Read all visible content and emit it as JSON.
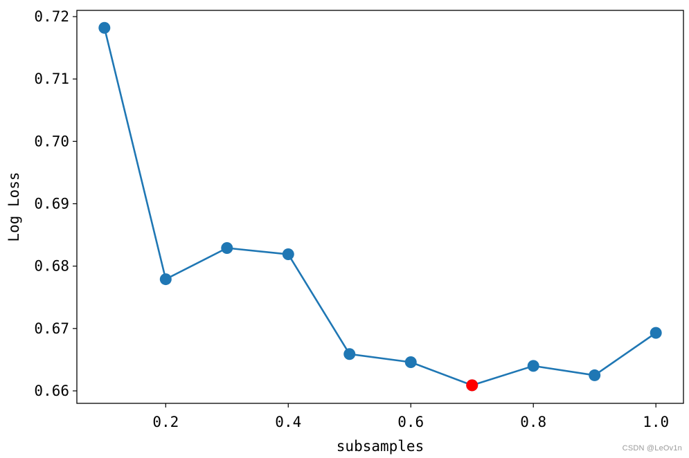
{
  "chart_data": {
    "type": "line",
    "title": "",
    "xlabel": "subsamples",
    "ylabel": "Log Loss",
    "x": [
      0.1,
      0.2,
      0.3,
      0.4,
      0.5,
      0.6,
      0.7,
      0.8,
      0.9,
      1.0
    ],
    "series": [
      {
        "values": [
          0.7182,
          0.6779,
          0.6829,
          0.6819,
          0.6659,
          0.6646,
          0.6609,
          0.664,
          0.6625,
          0.6693
        ],
        "color": "#1f77b4",
        "marker": "circle"
      }
    ],
    "highlight": {
      "x": 0.7,
      "y": 0.6609,
      "color": "#ff0000"
    },
    "xlim": [
      0.055,
      1.045
    ],
    "ylim": [
      0.658,
      0.721
    ],
    "xticks": [
      0.2,
      0.4,
      0.6,
      0.8,
      1.0
    ],
    "xtick_labels": [
      "0.2",
      "0.4",
      "0.6",
      "0.8",
      "1.0"
    ],
    "yticks": [
      0.66,
      0.67,
      0.68,
      0.69,
      0.7,
      0.71,
      0.72
    ],
    "ytick_labels": [
      "0.66",
      "0.67",
      "0.68",
      "0.69",
      "0.70",
      "0.71",
      "0.72"
    ],
    "grid": false,
    "legend": "none"
  },
  "watermark": "CSDN @LeOv1n"
}
